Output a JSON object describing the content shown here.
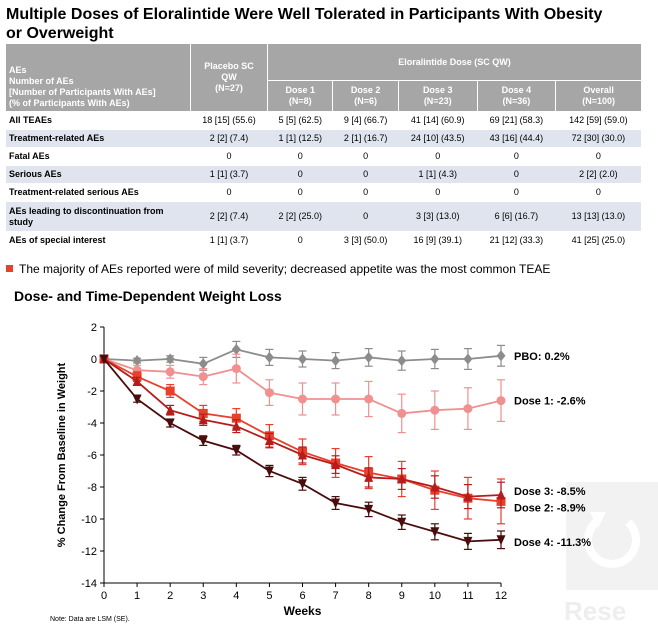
{
  "title": "Multiple Doses of Eloralintide Were Well Tolerated in Participants With Obesity or Overweight",
  "table": {
    "row_header": [
      "AEs",
      "Number of AEs",
      "[Number of Participants With AEs]",
      "(% of Participants With AEs)"
    ],
    "placebo_header": [
      "Placebo SC",
      "QW",
      "(N=27)"
    ],
    "group_header": "Eloralintide Dose (SC QW)",
    "dose_headers": [
      [
        "Dose 1",
        "(N=8)"
      ],
      [
        "Dose 2",
        "(N=6)"
      ],
      [
        "Dose 3",
        "(N=23)"
      ],
      [
        "Dose 4",
        "(N=36)"
      ],
      [
        "Overall",
        "(N=100)"
      ]
    ],
    "rows": [
      {
        "label": "All TEAEs",
        "cells": [
          "18 [15] (55.6)",
          "5 [5] (62.5)",
          "9 [4] (66.7)",
          "41 [14] (60.9)",
          "69 [21] (58.3)",
          "142 [59] (59.0)"
        ]
      },
      {
        "label": "Treatment-related AEs",
        "cells": [
          "2 [2] (7.4)",
          "1 [1] (12.5)",
          "2 [1] (16.7)",
          "24 [10] (43.5)",
          "43 [16] (44.4)",
          "72 [30] (30.0)"
        ]
      },
      {
        "label": "Fatal AEs",
        "cells": [
          "0",
          "0",
          "0",
          "0",
          "0",
          "0"
        ]
      },
      {
        "label": "Serious AEs",
        "cells": [
          "1 [1] (3.7)",
          "0",
          "0",
          "1 [1] (4.3)",
          "0",
          "2 [2] (2.0)"
        ]
      },
      {
        "label": "Treatment-related serious AEs",
        "cells": [
          "0",
          "0",
          "0",
          "0",
          "0",
          "0"
        ]
      },
      {
        "label": "AEs leading to discontinuation from study",
        "cells": [
          "2 [2] (7.4)",
          "2 [2] (25.0)",
          "0",
          "3 [3] (13.0)",
          "6 [6] (16.7)",
          "13 [13] (13.0)"
        ]
      },
      {
        "label": "AEs of special interest",
        "cells": [
          "1 [1] (3.7)",
          "0",
          "3 [3] (50.0)",
          "16 [9] (39.1)",
          "21 [12] (33.3)",
          "41 [25] (25.0)"
        ]
      }
    ]
  },
  "bullet_text": "The majority of AEs reported were of mild severity; decreased appetite was the most common TEAE",
  "chart_title": "Dose- and Time-Dependent Weight Loss",
  "footnote": "Note: Data are LSM (SE).",
  "watermark_text": "Rese",
  "chart_data": {
    "type": "line",
    "xlabel": "Weeks",
    "ylabel": "% Change From Baseline in Weight",
    "xlim": [
      0,
      12
    ],
    "ylim": [
      -14,
      2
    ],
    "x_ticks": [
      0,
      1,
      2,
      3,
      4,
      5,
      6,
      7,
      8,
      9,
      10,
      11,
      12
    ],
    "y_ticks": [
      2,
      0,
      -2,
      -4,
      -6,
      -8,
      -10,
      -12,
      -14
    ],
    "grid": false,
    "series": [
      {
        "name": "PBO",
        "end_label": "PBO: 0.2%",
        "color": "#8c8c8c",
        "marker": "diamond",
        "x": [
          0,
          1,
          2,
          3,
          4,
          5,
          6,
          7,
          8,
          9,
          10,
          11,
          12
        ],
        "y": [
          0,
          -0.1,
          0,
          -0.3,
          0.6,
          0.1,
          0,
          -0.1,
          0.1,
          -0.1,
          0,
          0,
          0.2
        ],
        "err": [
          0,
          0.15,
          0.2,
          0.4,
          0.5,
          0.5,
          0.5,
          0.5,
          0.55,
          0.6,
          0.6,
          0.65,
          0.65
        ]
      },
      {
        "name": "Dose 1",
        "end_label": "Dose 1: -2.6%",
        "color": "#f09090",
        "marker": "circle",
        "x": [
          0,
          1,
          2,
          3,
          4,
          5,
          6,
          7,
          8,
          9,
          10,
          11,
          12
        ],
        "y": [
          0,
          -0.7,
          -0.8,
          -1.1,
          -0.6,
          -2.1,
          -2.5,
          -2.5,
          -2.5,
          -3.4,
          -3.2,
          -3.1,
          -2.6
        ],
        "err": [
          0,
          0.3,
          0.4,
          0.5,
          0.9,
          0.8,
          1.0,
          1.0,
          1.1,
          1.2,
          1.2,
          1.3,
          1.3
        ]
      },
      {
        "name": "Dose 2",
        "end_label": "Dose 2: -8.9%",
        "color": "#e8402a",
        "marker": "square",
        "x": [
          0,
          1,
          2,
          3,
          4,
          5,
          6,
          7,
          8,
          9,
          10,
          11,
          12
        ],
        "y": [
          0,
          -1.1,
          -2,
          -3.4,
          -3.7,
          -4.8,
          -5.8,
          -6.5,
          -7.1,
          -7.5,
          -8.2,
          -8.7,
          -8.9
        ],
        "err": [
          0,
          0.3,
          0.4,
          0.5,
          0.6,
          0.7,
          0.8,
          0.9,
          1.0,
          1.1,
          1.2,
          1.3,
          1.4
        ]
      },
      {
        "name": "Dose 3",
        "end_label": "Dose 3: -8.5%",
        "color": "#b71c1c",
        "marker": "triangle-up",
        "x": [
          0,
          1,
          2,
          3,
          4,
          5,
          6,
          7,
          8,
          9,
          10,
          11,
          12
        ],
        "y": [
          0,
          -1.4,
          -3.2,
          -3.8,
          -4.2,
          -5.1,
          -6,
          -6.6,
          -7.4,
          -7.5,
          -8,
          -8.6,
          -8.5
        ],
        "err": [
          0,
          0.25,
          0.3,
          0.35,
          0.4,
          0.45,
          0.5,
          0.55,
          0.6,
          0.65,
          0.7,
          0.75,
          0.8
        ]
      },
      {
        "name": "Dose 4",
        "end_label": "Dose 4: -11.3%",
        "color": "#4a0d0d",
        "marker": "triangle-down",
        "x": [
          0,
          1,
          2,
          3,
          4,
          5,
          6,
          7,
          8,
          9,
          10,
          11,
          12
        ],
        "y": [
          0,
          -2.5,
          -4,
          -5.1,
          -5.7,
          -7,
          -7.8,
          -9,
          -9.4,
          -10.2,
          -10.8,
          -11.4,
          -11.3
        ],
        "err": [
          0,
          0.2,
          0.25,
          0.3,
          0.3,
          0.35,
          0.4,
          0.4,
          0.45,
          0.45,
          0.5,
          0.5,
          0.55
        ]
      }
    ]
  }
}
